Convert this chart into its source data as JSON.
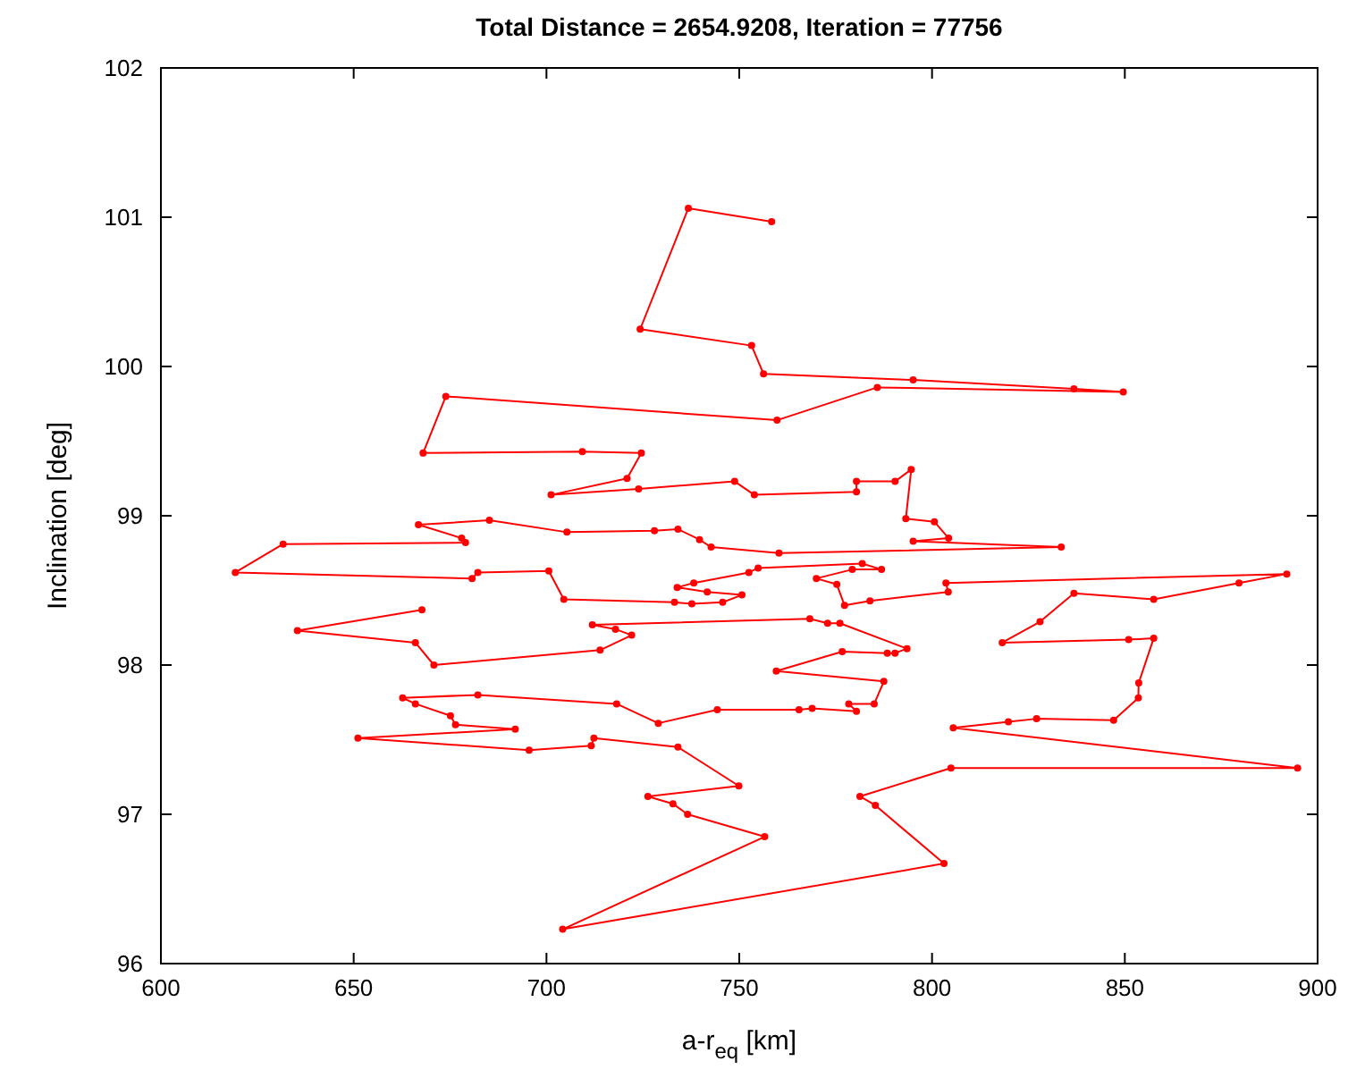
{
  "chart_data": {
    "type": "line",
    "title": "Total Distance = 2654.9208, Iteration = 77756",
    "xlabel": "a-r$_{eq}$ [km]",
    "ylabel": "Inclination [deg]",
    "xlim": [
      600,
      900
    ],
    "xticks": [
      600,
      650,
      700,
      750,
      800,
      850,
      900
    ],
    "ylim": [
      96,
      102
    ],
    "yticks": [
      96,
      97,
      98,
      99,
      100,
      101,
      102
    ],
    "grid": false,
    "marker": "circle",
    "line_style": "solid",
    "series": [
      {
        "color": "#ff0000",
        "x": [
          758.4,
          736.8,
          724.3,
          753.2,
          756.3,
          795.1,
          836.8,
          849.6,
          785.8,
          759.8,
          673.9,
          668.0,
          709.3,
          724.6,
          720.9,
          701.2,
          723.9,
          748.8,
          753.9,
          780.4,
          780.4,
          790.4,
          794.6,
          793.2,
          800.6,
          804.3,
          795.1,
          833.5,
          760.3,
          742.7,
          739.7,
          734.1,
          728.0,
          705.3,
          685.2,
          666.8,
          678.0,
          679.0,
          631.7,
          619.3,
          680.7,
          682.2,
          700.6,
          704.5,
          733.2,
          737.7,
          745.7,
          750.7,
          741.7,
          733.9,
          738.2,
          752.5,
          754.9,
          781.9,
          786.9,
          779.3,
          770.0,
          775.3,
          777.3,
          783.9,
          804.2,
          803.6,
          892.0,
          879.6,
          857.5,
          836.8,
          828.0,
          818.2,
          851.0,
          857.5,
          853.6,
          853.5,
          847.1,
          827.1,
          819.8,
          805.5,
          894.8,
          804.9,
          781.3,
          785.3,
          803.1,
          704.2,
          756.6,
          736.6,
          732.8,
          726.3,
          749.9,
          734.1,
          712.3,
          711.6,
          695.5,
          651.1,
          691.9,
          676.4,
          675.1,
          666.0,
          662.7,
          682.2,
          718.2,
          729.0,
          744.3,
          765.5,
          768.9,
          780.4,
          778.4,
          785.0,
          787.5,
          759.6,
          776.7,
          788.4,
          790.4,
          793.5,
          776.1,
          772.9,
          768.3,
          711.9,
          717.9,
          722.1,
          713.9,
          670.8,
          666.0,
          635.4,
          667.7
        ],
        "values": [
          100.97,
          101.06,
          100.25,
          100.14,
          99.95,
          99.91,
          99.85,
          99.83,
          99.86,
          99.64,
          99.8,
          99.42,
          99.43,
          99.42,
          99.25,
          99.14,
          99.18,
          99.23,
          99.14,
          99.16,
          99.23,
          99.23,
          99.31,
          98.98,
          98.96,
          98.85,
          98.83,
          98.79,
          98.75,
          98.79,
          98.84,
          98.91,
          98.9,
          98.89,
          98.97,
          98.94,
          98.85,
          98.82,
          98.81,
          98.62,
          98.58,
          98.62,
          98.63,
          98.44,
          98.42,
          98.41,
          98.42,
          98.47,
          98.49,
          98.52,
          98.55,
          98.62,
          98.65,
          98.68,
          98.64,
          98.64,
          98.58,
          98.54,
          98.4,
          98.43,
          98.49,
          98.55,
          98.61,
          98.55,
          98.44,
          98.48,
          98.29,
          98.15,
          98.17,
          98.18,
          97.88,
          97.78,
          97.63,
          97.64,
          97.62,
          97.58,
          97.31,
          97.31,
          97.12,
          97.06,
          96.67,
          96.23,
          96.85,
          97.0,
          97.07,
          97.12,
          97.19,
          97.45,
          97.51,
          97.46,
          97.43,
          97.51,
          97.57,
          97.6,
          97.66,
          97.74,
          97.78,
          97.8,
          97.74,
          97.61,
          97.7,
          97.7,
          97.71,
          97.69,
          97.74,
          97.74,
          97.89,
          97.96,
          98.09,
          98.08,
          98.08,
          98.11,
          98.28,
          98.28,
          98.31,
          98.27,
          98.24,
          98.2,
          98.1,
          98.0,
          98.15,
          98.23,
          98.37
        ]
      }
    ]
  }
}
